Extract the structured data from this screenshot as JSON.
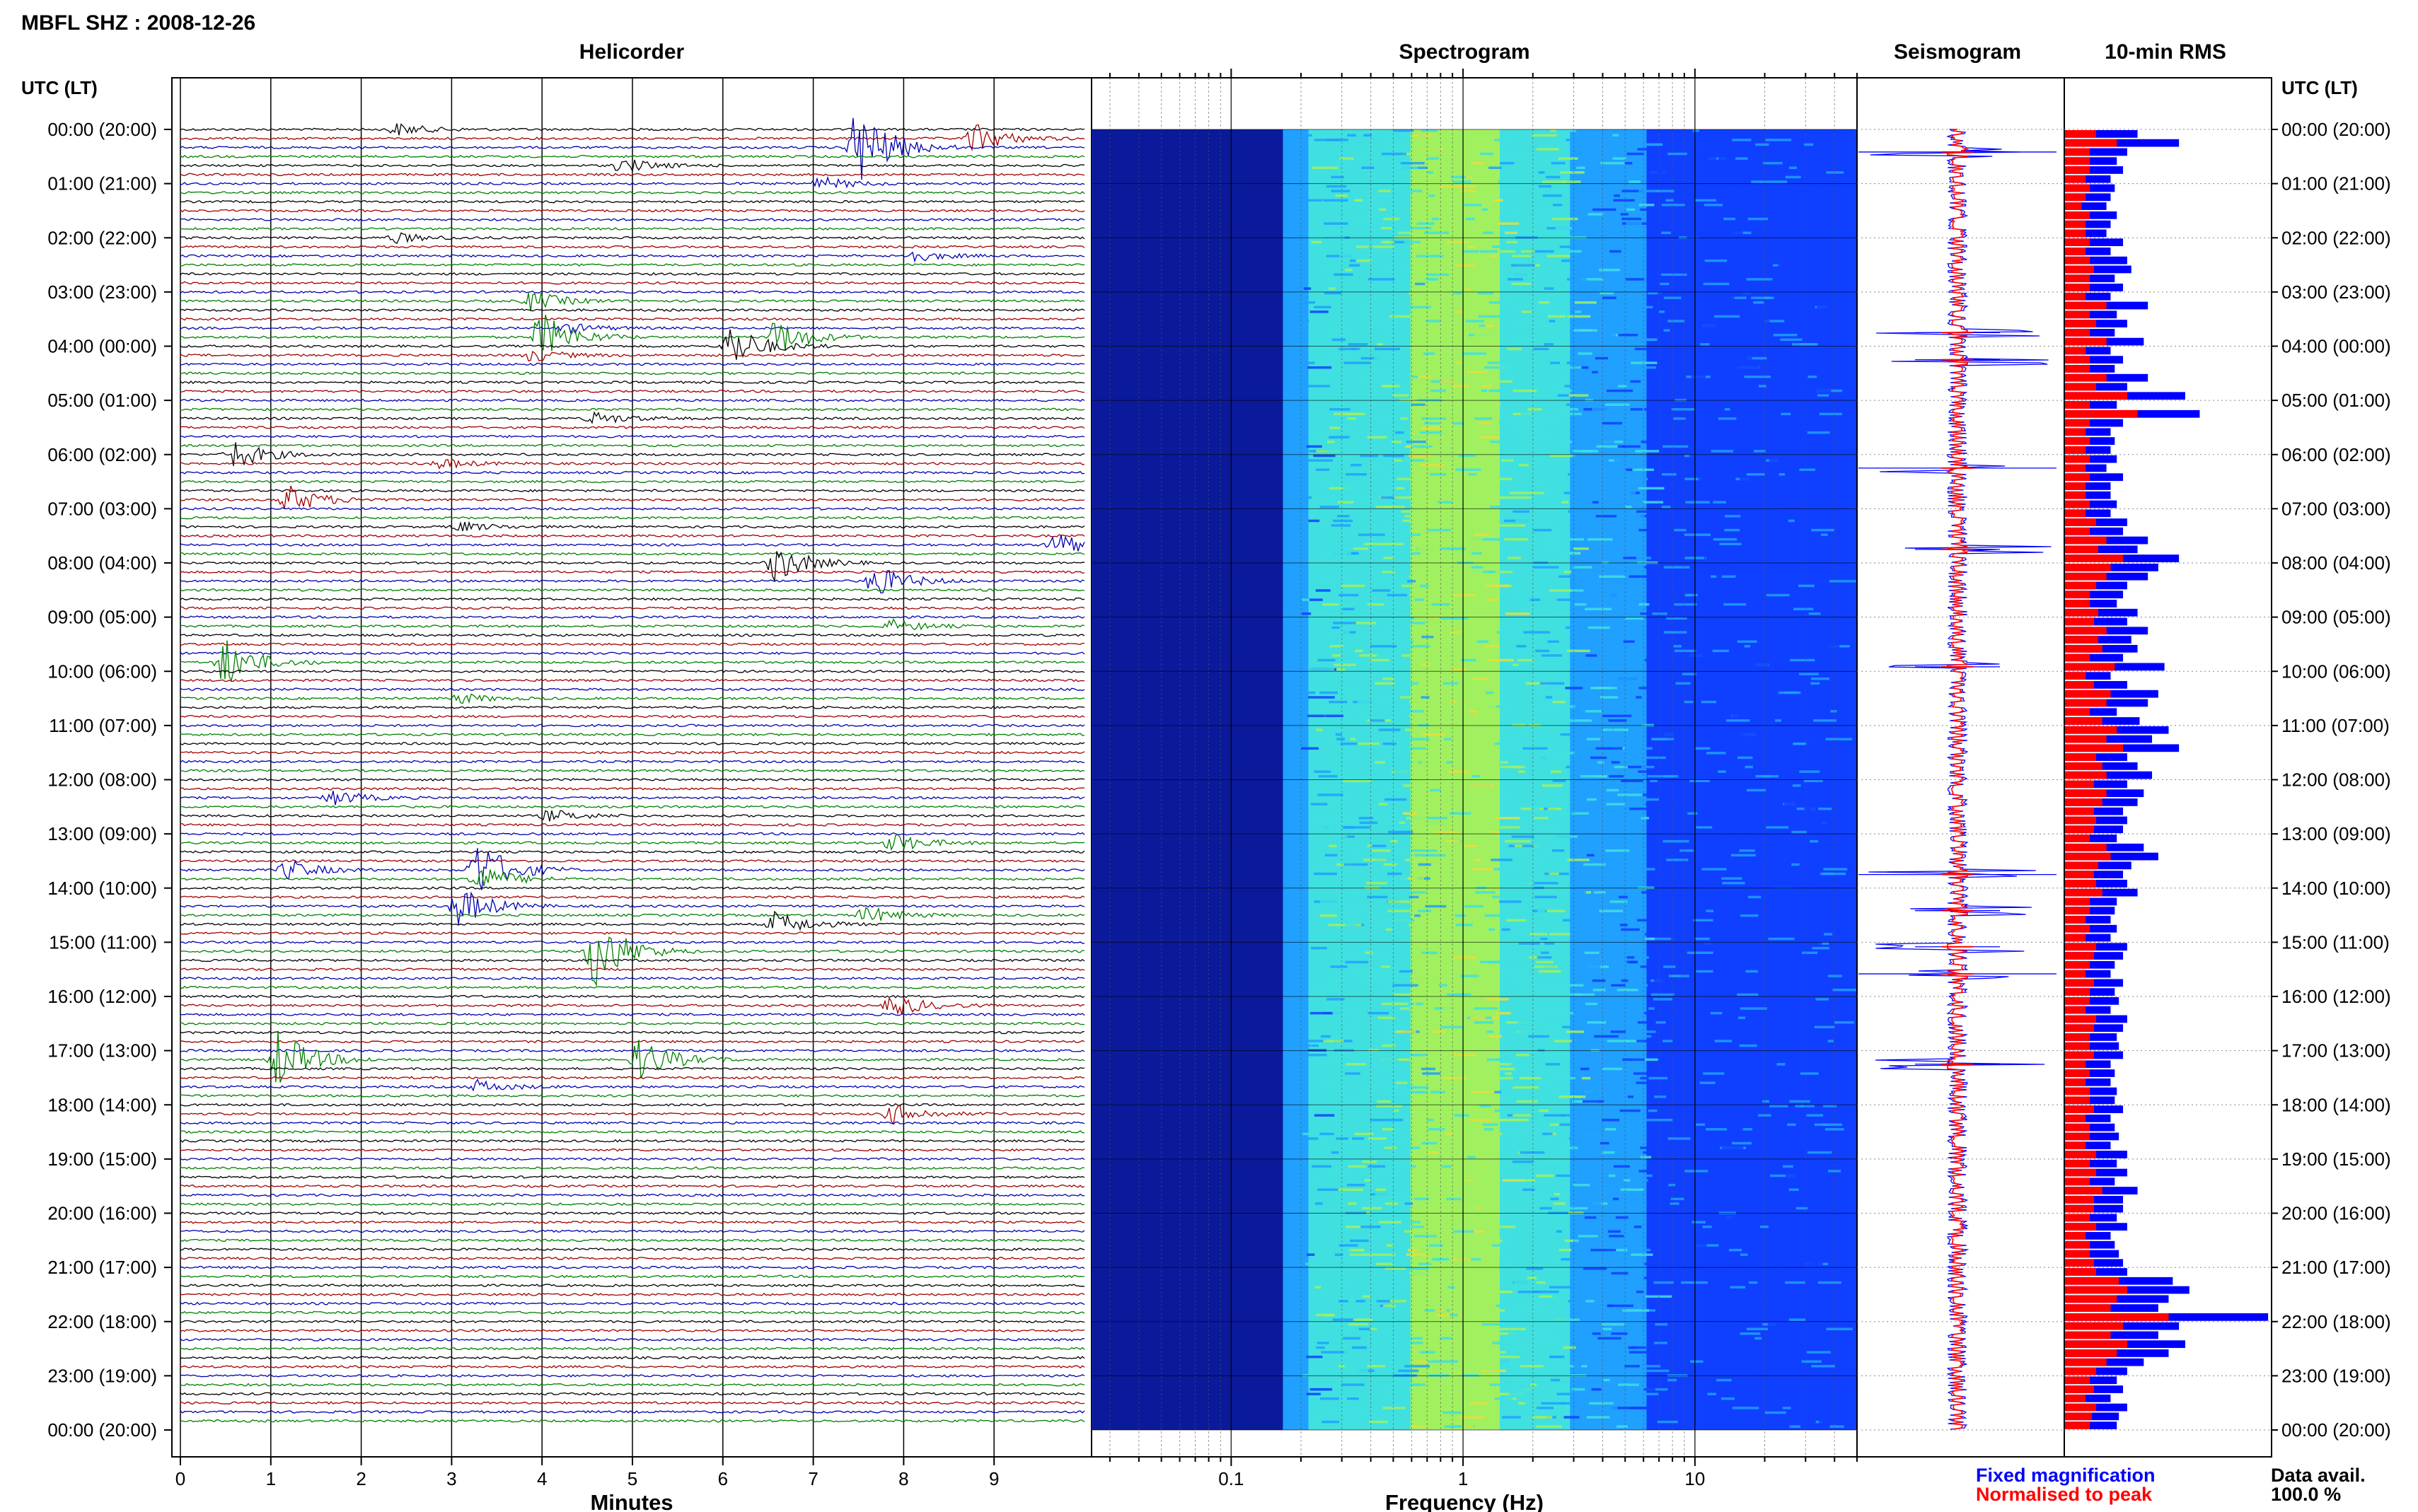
{
  "header": {
    "station_title": "MBFL SHZ : 2008-12-26",
    "time_axis_label": "UTC (LT)"
  },
  "panels": {
    "helicorder": "Helicorder",
    "spectrogram": "Spectrogram",
    "seismogram": "Seismogram",
    "rms": "10-min RMS"
  },
  "x_labels": {
    "helicorder": "Minutes",
    "spectrogram": "Frequency (Hz)"
  },
  "legend": {
    "fixed": "Fixed magnification",
    "normalised": "Normalised to peak",
    "fixed_color": "#0000ff",
    "normalised_color": "#ff0000"
  },
  "data_availability": {
    "label": "Data avail.",
    "value": "100.0 %"
  },
  "chart_data": [
    {
      "type": "line",
      "panel": "Helicorder",
      "xlabel": "Minutes",
      "x_ticks": [
        0,
        1,
        2,
        3,
        4,
        5,
        6,
        7,
        8,
        9
      ],
      "xlim": [
        0,
        10
      ],
      "row_interval_minutes": 10,
      "trace_colors": [
        "#000000",
        "#a00000",
        "#0000b0",
        "#008000"
      ],
      "time_labels": [
        "00:00 (20:00)",
        "01:00 (21:00)",
        "02:00 (22:00)",
        "03:00 (23:00)",
        "04:00 (00:00)",
        "05:00 (01:00)",
        "06:00 (02:00)",
        "07:00 (03:00)",
        "08:00 (04:00)",
        "09:00 (05:00)",
        "10:00 (06:00)",
        "11:00 (07:00)",
        "12:00 (08:00)",
        "13:00 (09:00)",
        "14:00 (10:00)",
        "15:00 (11:00)",
        "16:00 (12:00)",
        "17:00 (13:00)",
        "18:00 (14:00)",
        "19:00 (15:00)",
        "20:00 (16:00)",
        "21:00 (17:00)",
        "22:00 (18:00)",
        "23:00 (19:00)",
        "00:00 (20:00)"
      ],
      "events": [
        {
          "row": 0,
          "minute": 2.3,
          "amp": 0.5
        },
        {
          "row": 1,
          "minute": 8.7,
          "amp": 1.2
        },
        {
          "row": 2,
          "minute": 7.4,
          "amp": 3.5
        },
        {
          "row": 4,
          "minute": 4.8,
          "amp": 0.6
        },
        {
          "row": 6,
          "minute": 7.0,
          "amp": 0.5
        },
        {
          "row": 12,
          "minute": 2.3,
          "amp": 0.4
        },
        {
          "row": 14,
          "minute": 8.0,
          "amp": 0.5
        },
        {
          "row": 19,
          "minute": 3.8,
          "amp": 0.8
        },
        {
          "row": 22,
          "minute": 4.2,
          "amp": 0.4
        },
        {
          "row": 23,
          "minute": 6.5,
          "amp": 1.5
        },
        {
          "row": 23,
          "minute": 3.9,
          "amp": 2.0
        },
        {
          "row": 24,
          "minute": 6.0,
          "amp": 1.8
        },
        {
          "row": 25,
          "minute": 3.8,
          "amp": 0.5
        },
        {
          "row": 32,
          "minute": 4.5,
          "amp": 0.5
        },
        {
          "row": 36,
          "minute": 0.5,
          "amp": 1.2
        },
        {
          "row": 37,
          "minute": 2.8,
          "amp": 0.4
        },
        {
          "row": 41,
          "minute": 1.1,
          "amp": 1.2
        },
        {
          "row": 44,
          "minute": 3.0,
          "amp": 0.4
        },
        {
          "row": 46,
          "minute": 9.6,
          "amp": 1.0
        },
        {
          "row": 48,
          "minute": 6.5,
          "amp": 1.5
        },
        {
          "row": 50,
          "minute": 7.6,
          "amp": 1.3
        },
        {
          "row": 55,
          "minute": 7.8,
          "amp": 0.5
        },
        {
          "row": 59,
          "minute": 0.4,
          "amp": 2.0
        },
        {
          "row": 63,
          "minute": 3.0,
          "amp": 0.4
        },
        {
          "row": 74,
          "minute": 1.6,
          "amp": 0.6
        },
        {
          "row": 76,
          "minute": 4.0,
          "amp": 0.5
        },
        {
          "row": 79,
          "minute": 7.8,
          "amp": 0.8
        },
        {
          "row": 82,
          "minute": 1.1,
          "amp": 0.8
        },
        {
          "row": 82,
          "minute": 3.2,
          "amp": 2.5
        },
        {
          "row": 83,
          "minute": 3.2,
          "amp": 1.2
        },
        {
          "row": 86,
          "minute": 3.0,
          "amp": 1.6
        },
        {
          "row": 87,
          "minute": 7.5,
          "amp": 0.7
        },
        {
          "row": 88,
          "minute": 6.5,
          "amp": 1.0
        },
        {
          "row": 91,
          "minute": 4.5,
          "amp": 3.0
        },
        {
          "row": 97,
          "minute": 7.8,
          "amp": 0.9
        },
        {
          "row": 103,
          "minute": 1.0,
          "amp": 2.5
        },
        {
          "row": 103,
          "minute": 5.0,
          "amp": 1.8
        },
        {
          "row": 106,
          "minute": 3.2,
          "amp": 0.5
        },
        {
          "row": 109,
          "minute": 7.8,
          "amp": 0.8
        }
      ]
    },
    {
      "type": "heatmap",
      "panel": "Spectrogram",
      "xlabel": "Frequency (Hz)",
      "x_scale": "log",
      "xlim": [
        0.025,
        50
      ],
      "x_ticks": [
        0.1,
        1,
        10
      ],
      "colormap": [
        "#0a1a9a",
        "#1040ff",
        "#20a0ff",
        "#40e0e0",
        "#a0f060",
        "#e0e040"
      ],
      "dominant_band_hz": [
        0.2,
        2
      ],
      "peak_hz": 1
    },
    {
      "type": "line",
      "panel": "Seismogram",
      "series": [
        {
          "name": "Fixed magnification",
          "color": "#0000ff"
        },
        {
          "name": "Normalised to peak",
          "color": "#ff0000"
        }
      ],
      "peak_rows": [
        2,
        22,
        25,
        37,
        46,
        59,
        82,
        86,
        90,
        93,
        103
      ]
    },
    {
      "type": "bar",
      "panel": "10-min RMS",
      "orientation": "horizontal",
      "categories_per_hour": 6,
      "rows": 144,
      "fixed_magnification": [
        0.35,
        0.55,
        0.3,
        0.25,
        0.28,
        0.22,
        0.24,
        0.22,
        0.2,
        0.25,
        0.22,
        0.2,
        0.28,
        0.22,
        0.3,
        0.32,
        0.24,
        0.28,
        0.22,
        0.4,
        0.25,
        0.3,
        0.24,
        0.38,
        0.22,
        0.28,
        0.24,
        0.4,
        0.3,
        0.58,
        0.25,
        0.65,
        0.28,
        0.22,
        0.24,
        0.22,
        0.25,
        0.2,
        0.28,
        0.22,
        0.22,
        0.25,
        0.22,
        0.3,
        0.28,
        0.4,
        0.35,
        0.55,
        0.45,
        0.4,
        0.3,
        0.28,
        0.25,
        0.35,
        0.3,
        0.4,
        0.32,
        0.35,
        0.28,
        0.48,
        0.22,
        0.3,
        0.45,
        0.4,
        0.25,
        0.36,
        0.5,
        0.42,
        0.55,
        0.3,
        0.35,
        0.42,
        0.3,
        0.38,
        0.35,
        0.28,
        0.3,
        0.28,
        0.25,
        0.38,
        0.45,
        0.32,
        0.28,
        0.3,
        0.35,
        0.25,
        0.24,
        0.22,
        0.25,
        0.22,
        0.3,
        0.28,
        0.24,
        0.22,
        0.28,
        0.24,
        0.26,
        0.22,
        0.3,
        0.28,
        0.25,
        0.26,
        0.28,
        0.22,
        0.24,
        0.22,
        0.25,
        0.24,
        0.28,
        0.22,
        0.24,
        0.26,
        0.22,
        0.3,
        0.25,
        0.3,
        0.24,
        0.35,
        0.28,
        0.28,
        0.25,
        0.3,
        0.22,
        0.24,
        0.26,
        0.28,
        0.3,
        0.52,
        0.6,
        0.5,
        0.45,
        0.98,
        0.55,
        0.45,
        0.58,
        0.5,
        0.38,
        0.3,
        0.25,
        0.28,
        0.22,
        0.3,
        0.26,
        0.25
      ],
      "normalised_to_peak": [
        0.15,
        0.25,
        0.12,
        0.12,
        0.12,
        0.1,
        0.12,
        0.1,
        0.08,
        0.12,
        0.1,
        0.1,
        0.12,
        0.1,
        0.12,
        0.14,
        0.12,
        0.12,
        0.1,
        0.2,
        0.12,
        0.15,
        0.12,
        0.2,
        0.1,
        0.12,
        0.12,
        0.2,
        0.15,
        0.3,
        0.12,
        0.35,
        0.12,
        0.1,
        0.12,
        0.1,
        0.12,
        0.1,
        0.12,
        0.1,
        0.1,
        0.12,
        0.1,
        0.15,
        0.12,
        0.2,
        0.16,
        0.28,
        0.22,
        0.2,
        0.15,
        0.12,
        0.12,
        0.16,
        0.14,
        0.2,
        0.16,
        0.18,
        0.12,
        0.24,
        0.1,
        0.14,
        0.22,
        0.2,
        0.12,
        0.18,
        0.25,
        0.2,
        0.28,
        0.15,
        0.18,
        0.2,
        0.14,
        0.2,
        0.18,
        0.14,
        0.15,
        0.14,
        0.12,
        0.2,
        0.22,
        0.16,
        0.14,
        0.15,
        0.18,
        0.12,
        0.12,
        0.1,
        0.12,
        0.1,
        0.15,
        0.14,
        0.12,
        0.1,
        0.14,
        0.12,
        0.12,
        0.1,
        0.15,
        0.14,
        0.12,
        0.12,
        0.14,
        0.1,
        0.12,
        0.1,
        0.12,
        0.12,
        0.14,
        0.1,
        0.12,
        0.12,
        0.1,
        0.15,
        0.12,
        0.15,
        0.12,
        0.18,
        0.14,
        0.14,
        0.12,
        0.15,
        0.1,
        0.12,
        0.12,
        0.14,
        0.15,
        0.26,
        0.3,
        0.25,
        0.22,
        0.5,
        0.28,
        0.22,
        0.3,
        0.25,
        0.2,
        0.15,
        0.12,
        0.14,
        0.1,
        0.15,
        0.13,
        0.12
      ]
    }
  ]
}
